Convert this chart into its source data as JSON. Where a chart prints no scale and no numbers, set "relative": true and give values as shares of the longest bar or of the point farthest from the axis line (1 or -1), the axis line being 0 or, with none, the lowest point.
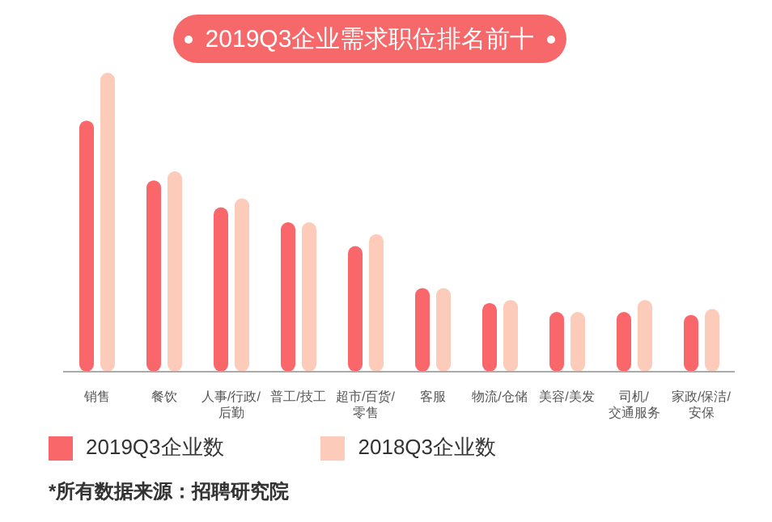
{
  "chart_data": {
    "type": "bar",
    "title": "2019Q3企业需求职位排名前十",
    "relative": true,
    "legend": "bottom",
    "categories": [
      "销售",
      "餐饮",
      "人事/行政/后勤",
      "普工/技工",
      "超市/百货/零售",
      "客服",
      "物流/仓储",
      "美容/美发",
      "司机/交通服务",
      "家政/保洁/安保"
    ],
    "series": [
      {
        "name": "2019Q3企业数",
        "color": "#f9676b",
        "values": [
          0.84,
          0.64,
          0.55,
          0.5,
          0.42,
          0.28,
          0.23,
          0.2,
          0.2,
          0.19
        ]
      },
      {
        "name": "2018Q3企业数",
        "color": "#fccbb9",
        "values": [
          1,
          0.67,
          0.58,
          0.5,
          0.46,
          0.28,
          0.24,
          0.2,
          0.24,
          0.21
        ]
      }
    ],
    "annotations": [
      "*所有数据来源：招聘研究院"
    ]
  }
}
